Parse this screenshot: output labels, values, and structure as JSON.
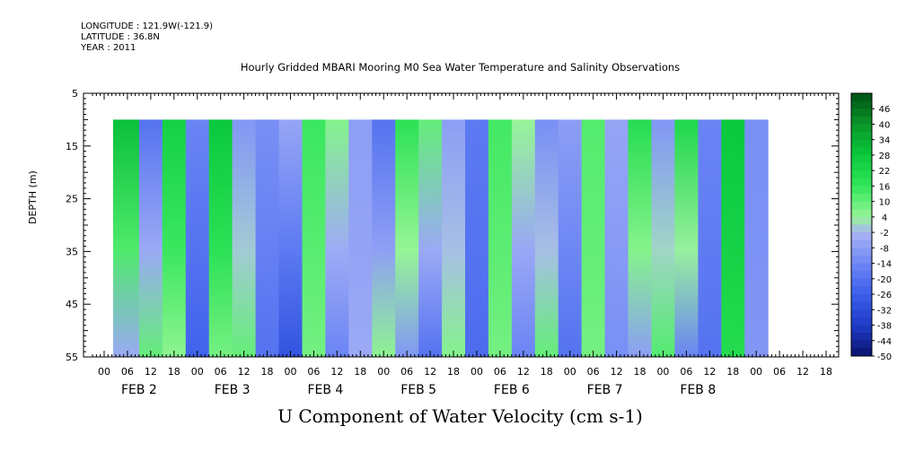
{
  "meta": {
    "longitude": "LONGITUDE : 121.9W(-121.9)",
    "latitude": "LATITUDE : 36.8N",
    "year": "YEAR : 2011"
  },
  "chart_data": {
    "type": "heatmap",
    "title": "Hourly Gridded MBARI Mooring M0 Sea Water Temperature and Salinity Observations",
    "xlabel": "U Component of Water Velocity (cm s-1)",
    "ylabel": "DEPTH (m)",
    "y_ticks": [
      5,
      15,
      25,
      35,
      45,
      55
    ],
    "ylim": [
      55,
      5
    ],
    "data_depth_range": [
      10,
      55
    ],
    "x_hour_labels": [
      "00",
      "06",
      "12",
      "18",
      "00",
      "06",
      "12",
      "18",
      "00",
      "06",
      "12",
      "18",
      "00",
      "06",
      "12",
      "18",
      "00",
      "06",
      "12",
      "18",
      "00",
      "06",
      "12",
      "18",
      "00",
      "06",
      "12",
      "18",
      "00",
      "06",
      "12",
      "18"
    ],
    "x_day_labels": [
      "FEB  2",
      "FEB  3",
      "FEB  4",
      "FEB  5",
      "FEB  6",
      "FEB  7",
      "FEB  8"
    ],
    "colorbar_labels": [
      "46",
      "40",
      "34",
      "28",
      "22",
      "16",
      "10",
      "4",
      "-2",
      "-8",
      "-14",
      "-20",
      "-26",
      "-32",
      "-38",
      "-44",
      "-50"
    ],
    "colorbar_range": [
      -50,
      52
    ],
    "column_velocity_profile": [
      {
        "hour": 6,
        "surface": 30,
        "bottom": -5
      },
      {
        "hour": 12,
        "surface": -20,
        "bottom": 10
      },
      {
        "hour": 18,
        "surface": 25,
        "bottom": 5
      },
      {
        "hour": 24,
        "surface": -15,
        "bottom": -25
      },
      {
        "hour": 30,
        "surface": 28,
        "bottom": 8
      },
      {
        "hour": 36,
        "surface": -10,
        "bottom": 10
      },
      {
        "hour": 42,
        "surface": -12,
        "bottom": -20
      },
      {
        "hour": 48,
        "surface": -6,
        "bottom": -30
      },
      {
        "hour": 54,
        "surface": 15,
        "bottom": 8
      },
      {
        "hour": 60,
        "surface": 6,
        "bottom": -15
      },
      {
        "hour": 66,
        "surface": -8,
        "bottom": -5
      },
      {
        "hour": 72,
        "surface": -20,
        "bottom": 5
      },
      {
        "hour": 78,
        "surface": 18,
        "bottom": -10
      },
      {
        "hour": 84,
        "surface": 10,
        "bottom": -20
      },
      {
        "hour": 90,
        "surface": -8,
        "bottom": 6
      },
      {
        "hour": 96,
        "surface": -18,
        "bottom": -22
      },
      {
        "hour": 102,
        "surface": 14,
        "bottom": 8
      },
      {
        "hour": 108,
        "surface": 4,
        "bottom": -15
      },
      {
        "hour": 114,
        "surface": -12,
        "bottom": 10
      },
      {
        "hour": 120,
        "surface": -8,
        "bottom": -20
      },
      {
        "hour": 126,
        "surface": 12,
        "bottom": 8
      },
      {
        "hour": 132,
        "surface": -6,
        "bottom": -12
      },
      {
        "hour": 138,
        "surface": 20,
        "bottom": -8
      },
      {
        "hour": 144,
        "surface": -10,
        "bottom": 12
      },
      {
        "hour": 150,
        "surface": 22,
        "bottom": -15
      },
      {
        "hour": 156,
        "surface": -15,
        "bottom": -20
      },
      {
        "hour": 162,
        "surface": 28,
        "bottom": 20
      },
      {
        "hour": 168,
        "surface": -12,
        "bottom": -10
      }
    ]
  }
}
